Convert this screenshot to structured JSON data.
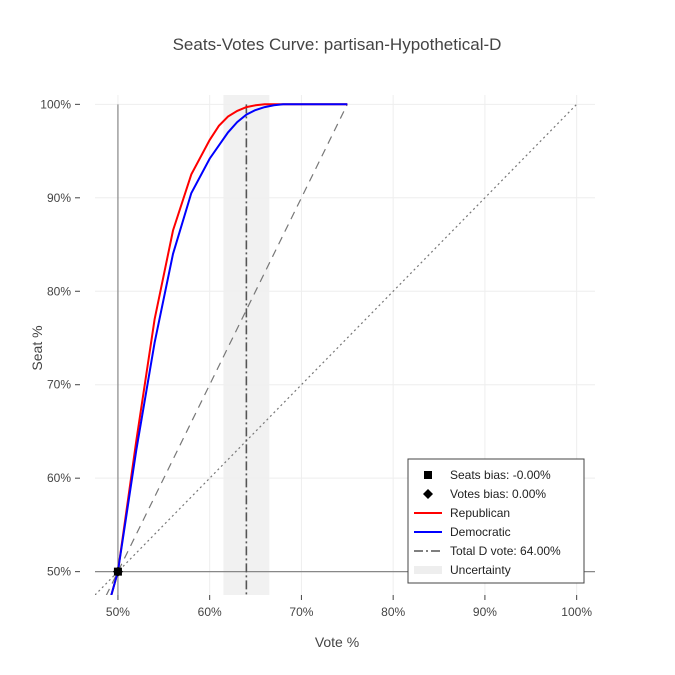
{
  "chart_data": {
    "type": "line",
    "title": "Seats-Votes Curve: partisan-Hypothetical-D",
    "xlabel": "Vote %",
    "ylabel": "Seat %",
    "xlim": [
      0.475,
      1.02
    ],
    "ylim": [
      0.475,
      1.01
    ],
    "x_ticks": [
      0.5,
      0.6,
      0.7,
      0.8,
      0.9,
      1.0
    ],
    "x_tick_labels": [
      "50%",
      "60%",
      "70%",
      "80%",
      "90%",
      "100%"
    ],
    "y_ticks": [
      0.5,
      0.6,
      0.7,
      0.8,
      0.9,
      1.0
    ],
    "y_tick_labels": [
      "50%",
      "60%",
      "70%",
      "80%",
      "90%",
      "100%"
    ],
    "grid": true,
    "legend_position": "bottom-right",
    "colors": {
      "republican": "#ff0000",
      "democratic": "#0000ff",
      "reference": "#777777",
      "marker": "#000000",
      "uncertainty": "#eeeeee"
    },
    "series": [
      {
        "name": "Republican",
        "color": "#ff0000",
        "x": [
          0.48,
          0.5,
          0.52,
          0.54,
          0.56,
          0.58,
          0.6,
          0.61,
          0.62,
          0.63,
          0.64,
          0.65,
          0.66,
          0.67,
          0.68,
          0.7,
          0.72,
          0.75
        ],
        "y": [
          0.43,
          0.5,
          0.64,
          0.77,
          0.865,
          0.925,
          0.962,
          0.977,
          0.987,
          0.993,
          0.997,
          0.999,
          1.0,
          1.0,
          1.0,
          1.0,
          1.0,
          1.0
        ]
      },
      {
        "name": "Democratic",
        "color": "#0000ff",
        "x": [
          0.48,
          0.5,
          0.52,
          0.54,
          0.56,
          0.58,
          0.6,
          0.62,
          0.63,
          0.64,
          0.65,
          0.66,
          0.67,
          0.68,
          0.7,
          0.72,
          0.75
        ],
        "y": [
          0.43,
          0.5,
          0.63,
          0.745,
          0.84,
          0.905,
          0.942,
          0.97,
          0.981,
          0.989,
          0.994,
          0.997,
          0.999,
          1.0,
          1.0,
          1.0,
          1.0
        ]
      }
    ],
    "reference_lines": {
      "proportional": {
        "x": [
          0.475,
          1.0
        ],
        "y": [
          0.475,
          1.0
        ]
      },
      "dashed": {
        "x": [
          0.46,
          0.75
        ],
        "y": [
          0.42,
          1.0
        ]
      },
      "axis_x": 0.5,
      "axis_y": 0.5
    },
    "total_d_vote": 0.64,
    "uncertainty_range": [
      0.615,
      0.665
    ],
    "markers": [
      {
        "name": "Seats bias: -0.00%",
        "symbol": "square",
        "x": 0.5,
        "y": 0.5
      },
      {
        "name": "Votes bias: 0.00%",
        "symbol": "diamond",
        "x": 0.5,
        "y": 0.5
      }
    ],
    "legend": [
      {
        "label": "Seats bias: -0.00%",
        "symbol": "square"
      },
      {
        "label": "Votes bias: 0.00%",
        "symbol": "diamond"
      },
      {
        "label": "Republican",
        "symbol": "line-red"
      },
      {
        "label": "Democratic",
        "symbol": "line-blue"
      },
      {
        "label": "Total D vote: 64.00%",
        "symbol": "dashdot"
      },
      {
        "label": "Uncertainty",
        "symbol": "band"
      }
    ]
  }
}
